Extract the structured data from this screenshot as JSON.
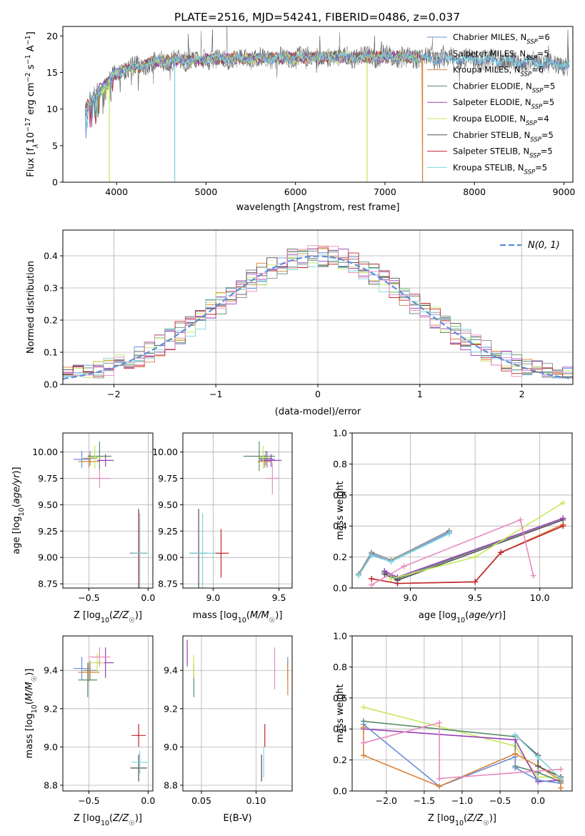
{
  "figure_title": "PLATE=2516, MJD=54241, FIBERID=0486, z=0.037",
  "colors": {
    "Chabrier MILES": "#6a8fd8",
    "Salpeter MILES": "#8a8a8a",
    "Kroupa MILES": "#d8823a",
    "Chabrier ELODIE": "#5a8a6a",
    "Salpeter ELODIE": "#9a3fb8",
    "Kroupa ELODIE": "#c8e860",
    "Chabrier STELIB": "#505050",
    "Salpeter STELIB": "#c0262d",
    "Kroupa STELIB": "#7fd6dc",
    "pink": "#e88ac0"
  },
  "chart_data": [
    {
      "id": "spectrum",
      "type": "line",
      "xlabel": "wavelength [Angstrom, rest frame]",
      "ylabel": "Flux [f",
      "ylabel_parts": [
        "Flux [f",
        "λ",
        "10",
        "−17",
        " erg cm",
        "−2",
        " s",
        "−1",
        " A",
        "−1",
        "]"
      ],
      "xlim": [
        3400,
        9100
      ],
      "ylim": [
        0,
        21.3
      ],
      "xticks": [
        4000,
        5000,
        6000,
        7000,
        8000,
        9000
      ],
      "yticks": [
        0,
        5,
        10,
        15,
        20
      ],
      "legend_position": "right",
      "legend": [
        {
          "label": "Chabrier MILES, N",
          "sub": "SSP",
          "value": "=6"
        },
        {
          "label": "Salpeter MILES, N",
          "sub": "SSP",
          "value": "=5"
        },
        {
          "label": "Kroupa MILES, N",
          "sub": "SSP",
          "value": "=6"
        },
        {
          "label": "Chabrier ELODIE, N",
          "sub": "SSP",
          "value": "=5"
        },
        {
          "label": "Salpeter ELODIE, N",
          "sub": "SSP",
          "value": "=5"
        },
        {
          "label": "Kroupa ELODIE, N",
          "sub": "SSP",
          "value": "=4"
        },
        {
          "label": "Chabrier STELIB, N",
          "sub": "SSP",
          "value": "=5"
        },
        {
          "label": "Salpeter STELIB, N",
          "sub": "SSP",
          "value": "=5"
        },
        {
          "label": "Kroupa STELIB, N",
          "sub": "SSP",
          "value": "=5"
        }
      ],
      "data_wavelength_range": [
        3650,
        9060
      ],
      "continuum_points": [
        [
          3650,
          10.0
        ],
        [
          3800,
          12.5
        ],
        [
          3950,
          14.5
        ],
        [
          4100,
          15.5
        ],
        [
          4500,
          16.5
        ],
        [
          5000,
          16.8
        ],
        [
          6000,
          17.0
        ],
        [
          7000,
          17.2
        ],
        [
          7500,
          17.0
        ],
        [
          8000,
          16.8
        ],
        [
          8500,
          16.5
        ],
        [
          9060,
          16.0
        ]
      ],
      "dropouts": [
        {
          "series": "Kroupa ELODIE",
          "x": 3920,
          "to": 0
        },
        {
          "series": "Kroupa STELIB",
          "x": 4650,
          "to": 0
        },
        {
          "series": "Kroupa ELODIE",
          "x": 6800,
          "to": 0
        },
        {
          "series": "Kroupa MILES",
          "x": 7420,
          "to": 0
        }
      ]
    },
    {
      "id": "residuals",
      "type": "histogram",
      "xlabel": "(data-model)/error",
      "ylabel": "Normed distribution",
      "xlim": [
        -2.5,
        2.5
      ],
      "ylim": [
        0,
        0.48
      ],
      "xticks": [
        -2,
        -1,
        0,
        1,
        2
      ],
      "yticks": [
        0,
        0.1,
        0.2,
        0.3,
        0.4
      ],
      "grid": true,
      "legend_position": "top-right",
      "legend": [
        {
          "label": "N(0, 1)",
          "style": "dashed"
        }
      ],
      "bin_width": 0.1
    },
    {
      "id": "age-vs-z",
      "type": "scatter",
      "xlabel": "Z [log10(Z/Z☉)]",
      "ylabel": "age  [log10(age/yr)]",
      "xlim": [
        -0.72,
        0.04
      ],
      "ylim": [
        8.71,
        10.18
      ],
      "xticks": [
        -0.5,
        0.0
      ],
      "yticks": [
        8.75,
        9.0,
        9.25,
        9.5,
        9.75,
        10.0
      ],
      "grid": true,
      "points": [
        {
          "series": "Chabrier MILES",
          "x": -0.56,
          "y": 9.93,
          "xerr": 0.07,
          "yerr": 0.08
        },
        {
          "series": "Salpeter MILES",
          "x": -0.49,
          "y": 9.94,
          "xerr": 0.06,
          "yerr": 0.07
        },
        {
          "series": "Kroupa MILES",
          "x": -0.5,
          "y": 9.91,
          "xerr": 0.09,
          "yerr": 0.06
        },
        {
          "series": "Chabrier ELODIE",
          "x": -0.41,
          "y": 9.96,
          "xerr": 0.1,
          "yerr": 0.14
        },
        {
          "series": "Salpeter ELODIE",
          "x": -0.36,
          "y": 9.92,
          "xerr": 0.07,
          "yerr": 0.06
        },
        {
          "series": "Kroupa ELODIE",
          "x": -0.45,
          "y": 9.95,
          "xerr": 0.06,
          "yerr": 0.11
        },
        {
          "series": "Chabrier STELIB",
          "x": -0.08,
          "y": 9.04,
          "xerr": 0.07,
          "yerr": 0.42
        },
        {
          "series": "Salpeter STELIB",
          "x": -0.08,
          "y": 9.04,
          "xerr": 0.06,
          "yerr": 0.4
        },
        {
          "series": "Kroupa STELIB",
          "x": -0.07,
          "y": 9.04,
          "xerr": 0.07,
          "yerr": 0.38
        },
        {
          "series": "pink",
          "x": -0.41,
          "y": 9.75,
          "xerr": 0.09,
          "yerr": 0.09
        }
      ]
    },
    {
      "id": "age-vs-mass",
      "type": "scatter",
      "xlabel": "mass [log10(M/M☉)]",
      "ylabel": "",
      "xlim": [
        8.77,
        9.6
      ],
      "ylim": [
        8.71,
        10.18
      ],
      "xticks": [
        9.0,
        9.5
      ],
      "yticks": [
        8.75,
        9.0,
        9.25,
        9.5,
        9.75,
        10.0
      ],
      "grid": true,
      "points": [
        {
          "series": "Chabrier MILES",
          "x": 9.41,
          "y": 9.93,
          "xerr": 0.06,
          "yerr": 0.08
        },
        {
          "series": "Salpeter MILES",
          "x": 9.4,
          "y": 9.94,
          "xerr": 0.05,
          "yerr": 0.07
        },
        {
          "series": "Kroupa MILES",
          "x": 9.39,
          "y": 9.91,
          "xerr": 0.05,
          "yerr": 0.06
        },
        {
          "series": "Chabrier ELODIE",
          "x": 9.35,
          "y": 9.96,
          "xerr": 0.12,
          "yerr": 0.14
        },
        {
          "series": "Salpeter ELODIE",
          "x": 9.44,
          "y": 9.92,
          "xerr": 0.08,
          "yerr": 0.06
        },
        {
          "series": "Kroupa ELODIE",
          "x": 9.38,
          "y": 9.95,
          "xerr": 0.04,
          "yerr": 0.11
        },
        {
          "series": "Chabrier STELIB",
          "x": 8.89,
          "y": 9.04,
          "xerr": 0.07,
          "yerr": 0.42
        },
        {
          "series": "Salpeter STELIB",
          "x": 9.06,
          "y": 9.04,
          "xerr": 0.06,
          "yerr": 0.23
        },
        {
          "series": "Kroupa STELIB",
          "x": 8.92,
          "y": 9.04,
          "xerr": 0.1,
          "yerr": 0.38
        },
        {
          "series": "pink",
          "x": 9.45,
          "y": 9.75,
          "xerr": 0.05,
          "yerr": 0.15
        }
      ]
    },
    {
      "id": "mass-weight-vs-age",
      "type": "line",
      "xlabel": "age  [log10(age/yr)]",
      "ylabel": "mass weight",
      "xlim": [
        8.55,
        10.25
      ],
      "ylim": [
        0,
        1.0
      ],
      "xticks": [
        9.0,
        9.5,
        10.0
      ],
      "yticks": [
        0.0,
        0.2,
        0.4,
        0.6,
        0.8,
        1.0
      ],
      "grid": true,
      "series": [
        {
          "name": "Chabrier MILES",
          "x": [
            8.6,
            8.7,
            8.85,
            9.3
          ],
          "y": [
            0.09,
            0.22,
            0.17,
            0.36
          ]
        },
        {
          "name": "Salpeter MILES",
          "x": [
            8.6,
            8.7,
            8.85,
            9.3
          ],
          "y": [
            0.09,
            0.23,
            0.18,
            0.37
          ]
        },
        {
          "name": "Kroupa STELIB",
          "x": [
            8.6,
            8.7,
            8.85,
            9.3
          ],
          "y": [
            0.08,
            0.21,
            0.17,
            0.35
          ]
        },
        {
          "name": "Kroupa MILES",
          "x": [
            8.7,
            8.9,
            9.5,
            9.7,
            10.18
          ],
          "y": [
            0.06,
            0.03,
            0.04,
            0.23,
            0.41
          ]
        },
        {
          "name": "Salpeter STELIB",
          "x": [
            8.7,
            8.9,
            9.5,
            9.7,
            10.18
          ],
          "y": [
            0.06,
            0.03,
            0.04,
            0.23,
            0.4
          ]
        },
        {
          "name": "Chabrier ELODIE",
          "x": [
            8.8,
            8.9,
            10.18
          ],
          "y": [
            0.1,
            0.06,
            0.45
          ]
        },
        {
          "name": "Chabrier STELIB",
          "x": [
            8.8,
            8.9,
            10.18
          ],
          "y": [
            0.09,
            0.05,
            0.44
          ]
        },
        {
          "name": "Salpeter ELODIE",
          "x": [
            8.8,
            8.9,
            10.18
          ],
          "y": [
            0.11,
            0.07,
            0.45
          ]
        },
        {
          "name": "Kroupa ELODIE",
          "x": [
            8.85,
            9.5,
            10.18
          ],
          "y": [
            0.06,
            0.2,
            0.55
          ]
        },
        {
          "name": "pink",
          "x": [
            8.7,
            8.95,
            9.85,
            9.95
          ],
          "y": [
            0.02,
            0.14,
            0.44,
            0.08
          ]
        }
      ]
    },
    {
      "id": "mass-vs-z",
      "type": "scatter",
      "xlabel": "Z [log10(Z/Z☉)]",
      "ylabel": "mass [log10(M/M☉)]",
      "xlim": [
        -0.72,
        0.04
      ],
      "ylim": [
        8.77,
        9.58
      ],
      "xticks": [
        -0.5,
        0.0
      ],
      "yticks": [
        8.8,
        9.0,
        9.2,
        9.4
      ],
      "grid": true,
      "points": [
        {
          "series": "Chabrier MILES",
          "x": -0.56,
          "y": 9.41,
          "xerr": 0.07,
          "yerr": 0.06
        },
        {
          "series": "Salpeter MILES",
          "x": -0.49,
          "y": 9.4,
          "xerr": 0.06,
          "yerr": 0.05
        },
        {
          "series": "Kroupa MILES",
          "x": -0.5,
          "y": 9.39,
          "xerr": 0.09,
          "yerr": 0.05
        },
        {
          "series": "Chabrier ELODIE",
          "x": -0.51,
          "y": 9.35,
          "xerr": 0.08,
          "yerr": 0.09
        },
        {
          "series": "Salpeter ELODIE",
          "x": -0.36,
          "y": 9.44,
          "xerr": 0.07,
          "yerr": 0.08
        },
        {
          "series": "Kroupa ELODIE",
          "x": -0.43,
          "y": 9.44,
          "xerr": 0.06,
          "yerr": 0.05
        },
        {
          "series": "Chabrier STELIB",
          "x": -0.08,
          "y": 8.89,
          "xerr": 0.07,
          "yerr": 0.07
        },
        {
          "series": "Salpeter STELIB",
          "x": -0.08,
          "y": 9.06,
          "xerr": 0.06,
          "yerr": 0.06
        },
        {
          "series": "Kroupa STELIB",
          "x": -0.07,
          "y": 8.92,
          "xerr": 0.07,
          "yerr": 0.06
        },
        {
          "series": "pink",
          "x": -0.41,
          "y": 9.47,
          "xerr": 0.09,
          "yerr": 0.05
        }
      ]
    },
    {
      "id": "mass-vs-ebv",
      "type": "scatter",
      "xlabel": "E(B-V)",
      "ylabel": "",
      "xlim": [
        0.033,
        0.133
      ],
      "ylim": [
        8.77,
        9.58
      ],
      "xticks": [
        0.05,
        0.1
      ],
      "yticks": [
        8.8,
        9.0,
        9.2,
        9.4
      ],
      "grid": true,
      "points": [
        {
          "series": "Chabrier MILES",
          "x": 0.129,
          "y": 9.41,
          "xerr": 0,
          "yerr": 0.06
        },
        {
          "series": "Salpeter MILES",
          "x": 0.129,
          "y": 9.4,
          "xerr": 0,
          "yerr": 0.05
        },
        {
          "series": "Kroupa MILES",
          "x": 0.129,
          "y": 9.35,
          "xerr": 0,
          "yerr": 0.08
        },
        {
          "series": "Chabrier ELODIE",
          "x": 0.043,
          "y": 9.35,
          "xerr": 0,
          "yerr": 0.09
        },
        {
          "series": "Salpeter ELODIE",
          "x": 0.037,
          "y": 9.49,
          "xerr": 0,
          "yerr": 0.07
        },
        {
          "series": "Kroupa ELODIE",
          "x": 0.043,
          "y": 9.42,
          "xerr": 0,
          "yerr": 0.06
        },
        {
          "series": "Chabrier STELIB",
          "x": 0.105,
          "y": 8.89,
          "xerr": 0,
          "yerr": 0.07
        },
        {
          "series": "Salpeter STELIB",
          "x": 0.108,
          "y": 9.06,
          "xerr": 0,
          "yerr": 0.06
        },
        {
          "series": "Kroupa STELIB",
          "x": 0.107,
          "y": 8.92,
          "xerr": 0,
          "yerr": 0.08
        },
        {
          "series": "pink",
          "x": 0.117,
          "y": 9.41,
          "xerr": 0,
          "yerr": 0.11
        }
      ]
    },
    {
      "id": "mass-weight-vs-z",
      "type": "line",
      "xlabel": "Z [log10(Z/Z☉)]",
      "ylabel": "mass weight",
      "xlim": [
        -2.45,
        0.45
      ],
      "ylim": [
        0,
        1.0
      ],
      "xticks": [
        -2.0,
        -1.5,
        -1.0,
        -0.5,
        0.0
      ],
      "yticks": [
        0.0,
        0.2,
        0.4,
        0.6,
        0.8,
        1.0
      ],
      "grid": true,
      "series": [
        {
          "name": "Kroupa ELODIE",
          "x": [
            -2.3,
            -0.3,
            0.0,
            0.3
          ],
          "y": [
            0.54,
            0.29,
            0.09,
            0.09
          ]
        },
        {
          "name": "Chabrier ELODIE",
          "x": [
            -2.3,
            -0.3,
            -0.3,
            0.0,
            0.3
          ],
          "y": [
            0.45,
            0.35,
            0.16,
            0.12,
            0.06
          ]
        },
        {
          "name": "Salpeter ELODIE",
          "x": [
            -2.3,
            -0.3,
            0.0,
            0.3
          ],
          "y": [
            0.4,
            0.33,
            0.06,
            0.07
          ]
        },
        {
          "name": "Chabrier MILES",
          "x": [
            -2.3,
            -1.3,
            -0.3,
            -0.3,
            0.0,
            0.3
          ],
          "y": [
            0.43,
            0.03,
            0.22,
            0.15,
            0.07,
            0.05
          ]
        },
        {
          "name": "Kroupa MILES",
          "x": [
            -2.3,
            -2.3,
            -1.3,
            -0.3,
            0.0,
            0.3,
            0.3
          ],
          "y": [
            0.41,
            0.23,
            0.03,
            0.24,
            0.16,
            0.07,
            0.02
          ]
        },
        {
          "name": "Chabrier STELIB",
          "x": [
            -0.3,
            0.0,
            0.0,
            0.3
          ],
          "y": [
            0.36,
            0.23,
            0.16,
            0.09
          ]
        },
        {
          "name": "Kroupa STELIB",
          "x": [
            -0.3,
            0.0,
            0.3
          ],
          "y": [
            0.36,
            0.22,
            0.08
          ]
        },
        {
          "name": "pink",
          "x": [
            -2.3,
            -1.3,
            -1.3,
            0.3
          ],
          "y": [
            0.31,
            0.44,
            0.08,
            0.14
          ]
        }
      ]
    }
  ]
}
